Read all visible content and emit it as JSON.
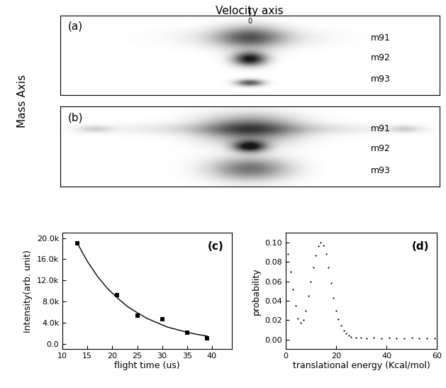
{
  "figure": {
    "velocity_label": "Velocity axis",
    "velocity_zero": "0",
    "mass_label": "Mass Axis"
  },
  "chart_data": [
    {
      "type": "image",
      "annotation": "(a)",
      "labels": [
        "m91",
        "m92",
        "m93"
      ]
    },
    {
      "type": "image",
      "annotation": "(b)",
      "labels": [
        "m91",
        "m92",
        "m93"
      ]
    },
    {
      "type": "scatter",
      "annotation": "(c)",
      "x_label": "flight time (us)",
      "y_label": "Intensity(arb. unit)",
      "xlim": [
        10,
        44
      ],
      "xticks": [
        10,
        15,
        20,
        25,
        30,
        35,
        40
      ],
      "ylim": [
        -1000,
        21000
      ],
      "yticks": [
        {
          "value": 0,
          "label": "0.0"
        },
        {
          "value": 4000,
          "label": "4.0k"
        },
        {
          "value": 8000,
          "label": "8.0k"
        },
        {
          "value": 12000,
          "label": "12.0k"
        },
        {
          "value": 16000,
          "label": "16.0k"
        },
        {
          "value": 20000,
          "label": "20.0k"
        }
      ],
      "series": [
        {
          "type": "scatter",
          "color": "#000000",
          "marker": "square",
          "x": [
            13,
            21,
            25,
            30,
            35,
            39
          ],
          "values": [
            19000,
            9200,
            5300,
            4700,
            2100,
            1000
          ]
        },
        {
          "type": "line",
          "color": "#000000",
          "line_style": "solid",
          "x": [
            13,
            15,
            17,
            19,
            21,
            23,
            25,
            27,
            29,
            31,
            33,
            35,
            37,
            39
          ],
          "values": [
            19000,
            15600,
            12800,
            10500,
            8700,
            7100,
            5900,
            4800,
            4000,
            3200,
            2700,
            2200,
            1800,
            1500
          ]
        }
      ]
    },
    {
      "type": "scatter",
      "annotation": "(d)",
      "x_label": "translational energy (Kcal/mol)",
      "y_label": "probability",
      "xlim": [
        0,
        60
      ],
      "xticks": [
        0,
        20,
        40,
        60
      ],
      "ylim": [
        -0.01,
        0.11
      ],
      "yticks": [
        {
          "value": 0.0,
          "label": "0.00"
        },
        {
          "value": 0.02,
          "label": "0.02"
        },
        {
          "value": 0.04,
          "label": "0.04"
        },
        {
          "value": 0.06,
          "label": "0.06"
        },
        {
          "value": 0.08,
          "label": "0.08"
        },
        {
          "value": 0.1,
          "label": "0.10"
        }
      ],
      "color": "#000000",
      "marker": "dot",
      "x": [
        1,
        2,
        3,
        4,
        5,
        6,
        7,
        8,
        9,
        10,
        11,
        12,
        13,
        14,
        15,
        16,
        17,
        18,
        19,
        20,
        21,
        22,
        23,
        24,
        25,
        26,
        28,
        30,
        32,
        35,
        38,
        41,
        44,
        47,
        50,
        53,
        56,
        59
      ],
      "values": [
        0.088,
        0.07,
        0.052,
        0.035,
        0.022,
        0.017,
        0.02,
        0.03,
        0.045,
        0.06,
        0.074,
        0.087,
        0.096,
        0.1,
        0.097,
        0.088,
        0.074,
        0.058,
        0.043,
        0.03,
        0.021,
        0.014,
        0.009,
        0.006,
        0.004,
        0.003,
        0.002,
        0.002,
        0.001,
        0.002,
        0.001,
        0.002,
        0.001,
        0.001,
        0.002,
        0.001,
        0.001,
        0.001
      ]
    }
  ]
}
